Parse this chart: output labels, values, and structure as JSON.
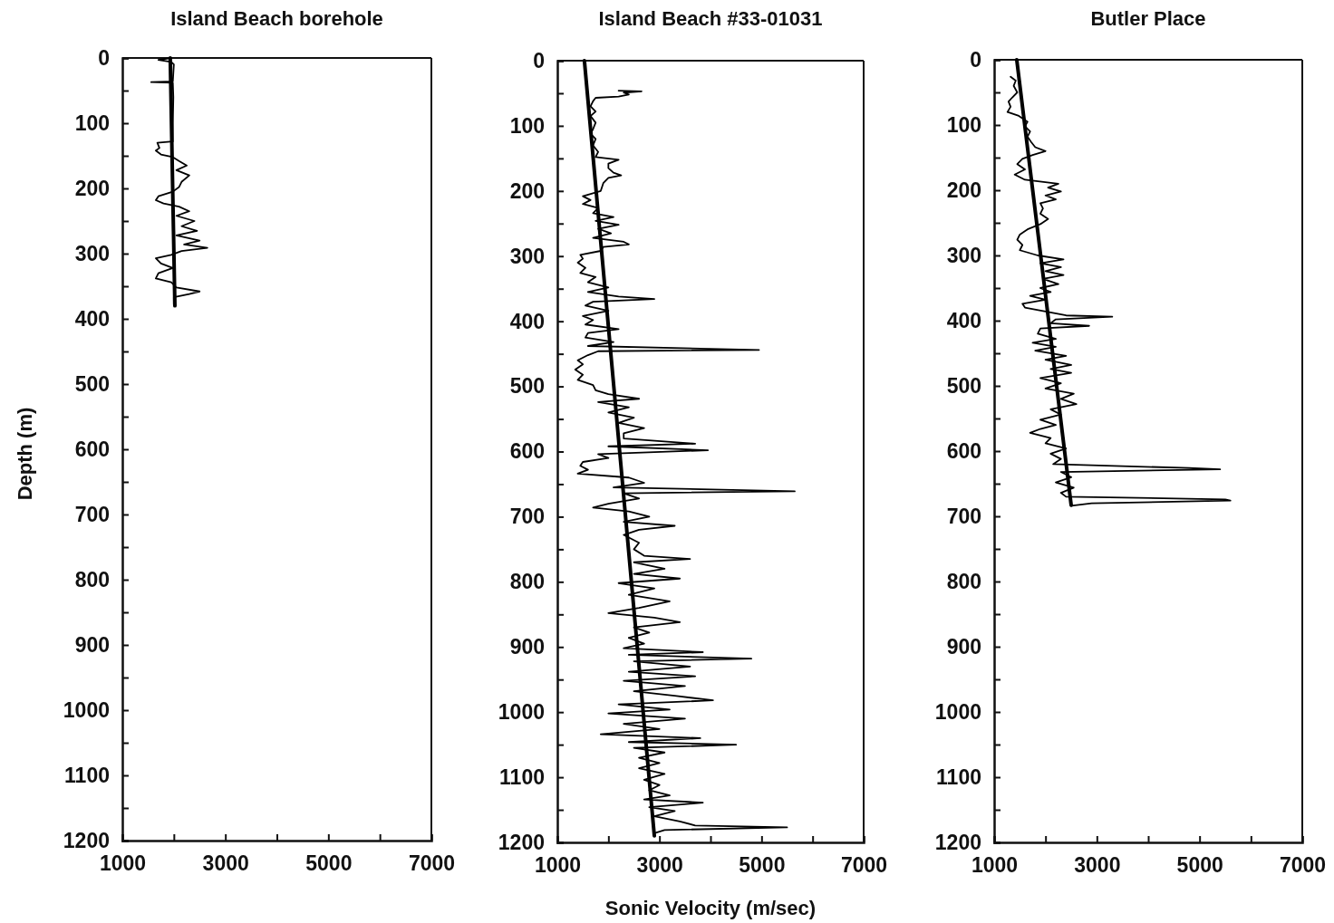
{
  "chart_data": [
    {
      "type": "line",
      "title": "Island Beach borehole",
      "ylabel": "Depth (m)",
      "xlim": [
        1000,
        7000
      ],
      "ylim": [
        1200,
        0
      ],
      "xticks": [
        1000,
        {
          "value": 2000,
          "label": null
        },
        3000,
        {
          "value": 4000,
          "label": null
        },
        5000,
        {
          "value": 6000,
          "label": null
        },
        7000
      ],
      "yticks": [
        0,
        {
          "value": 50,
          "label": null
        },
        100,
        {
          "value": 150,
          "label": null
        },
        200,
        {
          "value": 250,
          "label": null
        },
        300,
        {
          "value": 350,
          "label": null
        },
        400,
        {
          "value": 450,
          "label": null
        },
        500,
        {
          "value": 550,
          "label": null
        },
        600,
        {
          "value": 650,
          "label": null
        },
        700,
        {
          "value": 750,
          "label": null
        },
        800,
        {
          "value": 850,
          "label": null
        },
        900,
        {
          "value": 950,
          "label": null
        },
        1000,
        {
          "value": 1050,
          "label": null
        },
        1100,
        {
          "value": 1150,
          "label": null
        },
        1200
      ],
      "series": [
        {
          "color": "#000000",
          "x": [
            1950,
            1700,
            1950,
            2000,
            1980,
            1560,
            1980,
            1990,
            1980,
            1980,
            1680,
            1720,
            1650,
            1750,
            1980,
            2100,
            2250,
            2050,
            2300,
            2150,
            2100,
            1980,
            1700,
            1650,
            1800,
            2100,
            2300,
            2050,
            2400,
            2150,
            2450,
            2050,
            2500,
            2200,
            2650,
            2150,
            1950,
            1650,
            1750,
            1980,
            1700,
            1650,
            1950,
            2050,
            2500,
            2300,
            2000,
            2000
          ],
          "values": [
            0,
            3,
            6,
            10,
            36,
            37,
            38,
            60,
            100,
            128,
            130,
            138,
            142,
            148,
            152,
            158,
            165,
            172,
            180,
            190,
            198,
            205,
            212,
            218,
            223,
            228,
            235,
            242,
            250,
            258,
            265,
            272,
            280,
            286,
            291,
            296,
            302,
            307,
            315,
            322,
            330,
            338,
            344,
            352,
            358,
            362,
            367,
            378
          ]
        },
        {
          "color": "#000000",
          "x": [
            1930,
            2020
          ],
          "values": [
            0,
            380
          ]
        }
      ]
    },
    {
      "type": "line",
      "title": "Island Beach #33-01031",
      "xlabel": "Sonic Velocity (m/sec)",
      "xlim": [
        1000,
        7000
      ],
      "ylim": [
        1200,
        0
      ],
      "xticks": [
        1000,
        {
          "value": 2000,
          "label": null
        },
        3000,
        {
          "value": 4000,
          "label": null
        },
        5000,
        {
          "value": 6000,
          "label": null
        },
        7000
      ],
      "yticks": [
        0,
        {
          "value": 50,
          "label": null
        },
        100,
        {
          "value": 150,
          "label": null
        },
        200,
        {
          "value": 250,
          "label": null
        },
        300,
        {
          "value": 350,
          "label": null
        },
        400,
        {
          "value": 450,
          "label": null
        },
        500,
        {
          "value": 550,
          "label": null
        },
        600,
        {
          "value": 650,
          "label": null
        },
        700,
        {
          "value": 750,
          "label": null
        },
        800,
        {
          "value": 850,
          "label": null
        },
        900,
        {
          "value": 950,
          "label": null
        },
        1000,
        {
          "value": 1050,
          "label": null
        },
        1100,
        {
          "value": 1150,
          "label": null
        },
        1200
      ],
      "series": [
        {
          "color": "#000000",
          "x": [
            2200,
            2650,
            2300,
            2400,
            2200,
            1750,
            1700,
            1650,
            1750,
            1650,
            1750,
            1700,
            1650,
            1750,
            1700,
            1800,
            1750,
            2200,
            2000,
            2000,
            2100,
            2250,
            2000,
            1900,
            1850,
            1500,
            1650,
            1500,
            1800,
            1700,
            2100,
            1750,
            2200,
            1800,
            2050,
            1700,
            2300,
            2400,
            1900,
            1850,
            1450,
            1500,
            1400,
            1550,
            1450,
            1750,
            1600,
            2000,
            1600,
            2200,
            2900,
            1700,
            1550,
            2000,
            1500,
            1700,
            1550,
            2200,
            1600,
            1550,
            2100,
            1600,
            4950,
            1800,
            1600,
            1400,
            1500,
            1350,
            1500,
            1400,
            1700,
            1750,
            2000,
            2600,
            1800,
            2400,
            2000,
            2500,
            2200,
            2700,
            2300,
            2300,
            3700,
            2000,
            3950,
            1800,
            2000,
            1500,
            1450,
            1600,
            1400,
            2400,
            2700,
            2100,
            5650,
            2300,
            2600,
            2000,
            1700,
            2400,
            2800,
            2300,
            3300,
            2600,
            2300,
            2600,
            2500,
            2700,
            3600,
            2500,
            3100,
            2500,
            3400,
            2200,
            2900,
            2400,
            3200,
            2600,
            2000,
            2900,
            3400,
            2500,
            2800,
            2400,
            2700,
            2300,
            3850,
            2400,
            4800,
            2500,
            3600,
            2400,
            3700,
            2300,
            3500,
            2500,
            3300,
            4050,
            2200,
            3200,
            2000,
            3500,
            2300,
            3000,
            1850,
            3800,
            2400,
            4500,
            2500,
            3100,
            2600,
            3000,
            2600,
            3100,
            2700,
            3000,
            2800,
            3200,
            2700,
            3850,
            2800,
            3300,
            2900,
            3400,
            3700,
            5500,
            3100,
            2900,
            2900
          ],
          "values": [
            46,
            47,
            49,
            52,
            55,
            57,
            62,
            70,
            78,
            85,
            95,
            105,
            112,
            120,
            130,
            140,
            148,
            152,
            158,
            165,
            172,
            176,
            180,
            188,
            200,
            208,
            214,
            220,
            226,
            234,
            240,
            246,
            252,
            258,
            265,
            272,
            278,
            282,
            286,
            292,
            298,
            304,
            310,
            318,
            326,
            332,
            340,
            348,
            355,
            362,
            366,
            370,
            376,
            384,
            392,
            398,
            405,
            412,
            418,
            425,
            432,
            438,
            444,
            446,
            452,
            460,
            466,
            474,
            482,
            490,
            498,
            506,
            512,
            519,
            524,
            532,
            540,
            548,
            556,
            564,
            572,
            580,
            588,
            592,
            598,
            604,
            610,
            616,
            622,
            628,
            634,
            640,
            648,
            655,
            661,
            664,
            672,
            680,
            686,
            692,
            700,
            708,
            714,
            720,
            728,
            740,
            750,
            760,
            765,
            770,
            780,
            788,
            795,
            802,
            810,
            820,
            830,
            840,
            848,
            855,
            862,
            870,
            878,
            886,
            895,
            902,
            908,
            912,
            918,
            922,
            930,
            938,
            945,
            952,
            960,
            968,
            975,
            982,
            988,
            996,
            1002,
            1010,
            1018,
            1026,
            1034,
            1040,
            1046,
            1050,
            1055,
            1062,
            1070,
            1078,
            1086,
            1095,
            1104,
            1112,
            1120,
            1128,
            1134,
            1139,
            1146,
            1152,
            1160,
            1168,
            1174,
            1177,
            1181,
            1186,
            1190
          ]
        },
        {
          "color": "#000000",
          "x": [
            1530,
            2900
          ],
          "values": [
            0,
            1190
          ]
        }
      ]
    },
    {
      "type": "line",
      "title": "Butler Place",
      "xlim": [
        1000,
        7000
      ],
      "ylim": [
        1200,
        0
      ],
      "xticks": [
        1000,
        {
          "value": 2000,
          "label": null
        },
        3000,
        {
          "value": 4000,
          "label": null
        },
        5000,
        {
          "value": 6000,
          "label": null
        },
        7000
      ],
      "yticks": [
        0,
        {
          "value": 50,
          "label": null
        },
        100,
        {
          "value": 150,
          "label": null
        },
        200,
        {
          "value": 250,
          "label": null
        },
        300,
        {
          "value": 350,
          "label": null
        },
        400,
        {
          "value": 450,
          "label": null
        },
        500,
        {
          "value": 550,
          "label": null
        },
        600,
        {
          "value": 650,
          "label": null
        },
        700,
        {
          "value": 750,
          "label": null
        },
        800,
        {
          "value": 850,
          "label": null
        },
        900,
        {
          "value": 950,
          "label": null
        },
        1000,
        {
          "value": 1050,
          "label": null
        },
        1100,
        {
          "value": 1150,
          "label": null
        },
        1200
      ],
      "series": [
        {
          "color": "#000000",
          "x": [
            1320,
            1420,
            1380,
            1450,
            1350,
            1280,
            1320,
            1260,
            1480,
            1650,
            1600,
            1700,
            1650,
            1720,
            1800,
            2000,
            1750,
            1550,
            1450,
            1600,
            1400,
            1600,
            2250,
            2050,
            2300,
            2000,
            2200,
            1900,
            1950,
            1900,
            2050,
            1900,
            1650,
            1500,
            1450,
            1550,
            1500,
            1850,
            2350,
            1900,
            2300,
            2000,
            2350,
            1950,
            2250,
            1900,
            2100,
            1700,
            2000,
            1550,
            1600,
            2000,
            2400,
            3300,
            2200,
            2100,
            2850,
            1900,
            1850,
            2200,
            1750,
            2200,
            1800,
            2400,
            2000,
            2500,
            2100,
            2500,
            1900,
            2300,
            2000,
            2550,
            2300,
            2600,
            2100,
            2300,
            1900,
            2200,
            1900,
            1700,
            2100,
            2000,
            2400,
            2100,
            2300,
            2150,
            4800,
            5400,
            2300,
            2500,
            2200,
            2550,
            2300,
            2400,
            5500,
            5600,
            2900,
            2500
          ],
          "values": [
            26,
            32,
            40,
            50,
            58,
            64,
            72,
            80,
            86,
            95,
            102,
            110,
            118,
            126,
            134,
            140,
            146,
            152,
            160,
            168,
            176,
            184,
            190,
            196,
            202,
            208,
            214,
            220,
            228,
            236,
            244,
            252,
            260,
            268,
            276,
            284,
            292,
            300,
            306,
            312,
            318,
            324,
            330,
            336,
            344,
            350,
            356,
            362,
            368,
            374,
            380,
            386,
            392,
            394,
            398,
            404,
            408,
            412,
            420,
            428,
            434,
            440,
            446,
            454,
            460,
            468,
            474,
            480,
            488,
            496,
            504,
            512,
            520,
            528,
            536,
            544,
            552,
            560,
            566,
            572,
            580,
            588,
            596,
            604,
            612,
            620,
            626,
            628,
            632,
            640,
            648,
            656,
            664,
            670,
            674,
            676,
            680,
            684
          ]
        },
        {
          "color": "#000000",
          "x": [
            1440,
            2500
          ],
          "values": [
            0,
            683
          ]
        }
      ]
    }
  ]
}
